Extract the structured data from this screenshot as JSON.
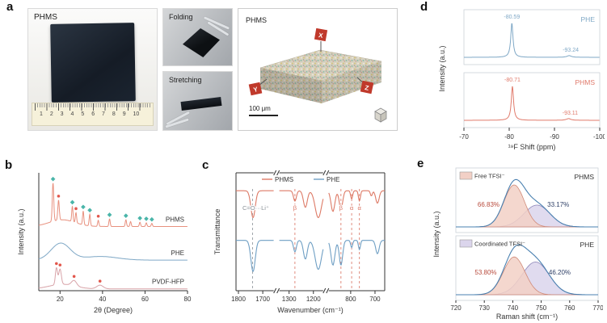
{
  "figure": {
    "panel_labels": {
      "a": "a",
      "b": "b",
      "c": "c",
      "d": "d",
      "e": "e"
    }
  },
  "panel_a": {
    "membrane_photo": {
      "label": "PHMS",
      "ruler_numbers": "1 2 3 4 5 6 7 8 9 10"
    },
    "folding_photo": {
      "label": "Folding"
    },
    "stretching_photo": {
      "label": "Stretching"
    },
    "render_3d": {
      "label": "PHMS",
      "scale_bar": "100 μm",
      "axis_flags": [
        "X",
        "Y",
        "Z"
      ]
    }
  },
  "chart_data": [
    {
      "id": "xrd",
      "type": "line",
      "title": "",
      "xlabel": "2θ (Degree)",
      "ylabel": "Intensity (a.u.)",
      "xlim": [
        10,
        80
      ],
      "xticks": [
        20,
        40,
        60,
        80
      ],
      "marker_colors": {
        "d": "#4ab5a9",
        "c": "#e2574c"
      },
      "series": [
        {
          "name": "PHMS",
          "color": "#e8907e",
          "offset": 2.1,
          "humps": [
            {
              "c": 21,
              "a": 0.22,
              "w": 6
            }
          ],
          "peaks": [
            {
              "c": 16.7,
              "a": 1.25,
              "w": 0.35
            },
            {
              "c": 19.3,
              "a": 0.65,
              "w": 0.35
            },
            {
              "c": 25.8,
              "a": 0.5,
              "w": 0.3
            },
            {
              "c": 27.5,
              "a": 0.33,
              "w": 0.3
            },
            {
              "c": 30.9,
              "a": 0.45,
              "w": 0.3
            },
            {
              "c": 34.0,
              "a": 0.38,
              "w": 0.3
            },
            {
              "c": 38.0,
              "a": 0.2,
              "w": 0.3
            },
            {
              "c": 43.3,
              "a": 0.25,
              "w": 0.3
            },
            {
              "c": 51.0,
              "a": 0.22,
              "w": 0.3
            },
            {
              "c": 53.2,
              "a": 0.16,
              "w": 0.3
            },
            {
              "c": 57.6,
              "a": 0.14,
              "w": 0.3
            },
            {
              "c": 60.6,
              "a": 0.12,
              "w": 0.3
            },
            {
              "c": 63.2,
              "a": 0.1,
              "w": 0.3
            }
          ],
          "markers": [
            {
              "x": 16.7,
              "sym": "d"
            },
            {
              "x": 19.3,
              "sym": "c"
            },
            {
              "x": 25.8,
              "sym": "d"
            },
            {
              "x": 27.5,
              "sym": "c"
            },
            {
              "x": 30.9,
              "sym": "d"
            },
            {
              "x": 34.0,
              "sym": "d"
            },
            {
              "x": 38.0,
              "sym": "c"
            },
            {
              "x": 43.3,
              "sym": "d"
            },
            {
              "x": 51.0,
              "sym": "d"
            },
            {
              "x": 57.6,
              "sym": "d"
            },
            {
              "x": 60.6,
              "sym": "d"
            },
            {
              "x": 63.2,
              "sym": "d"
            }
          ]
        },
        {
          "name": "PHE",
          "color": "#7fa8c6",
          "offset": 1.0,
          "humps": [
            {
              "c": 20.3,
              "a": 0.55,
              "w": 4.5
            },
            {
              "c": 39,
              "a": 0.12,
              "w": 8
            }
          ],
          "peaks": [],
          "markers": []
        },
        {
          "name": "PVDF-HFP",
          "color": "#d8a3a8",
          "offset": 0.06,
          "humps": [
            {
              "c": 21,
              "a": 0.15,
              "w": 6
            }
          ],
          "peaks": [
            {
              "c": 18.3,
              "a": 0.55,
              "w": 0.5
            },
            {
              "c": 20.0,
              "a": 0.5,
              "w": 0.6
            },
            {
              "c": 26.6,
              "a": 0.18,
              "w": 1.2
            },
            {
              "c": 38.8,
              "a": 0.12,
              "w": 1.5
            }
          ],
          "markers": [
            {
              "x": 18.3,
              "sym": "c"
            },
            {
              "x": 20.0,
              "sym": "c"
            },
            {
              "x": 26.6,
              "sym": "c"
            },
            {
              "x": 38.8,
              "sym": "c"
            }
          ]
        }
      ]
    },
    {
      "id": "ftir",
      "type": "line",
      "title": "",
      "xlabel": "Wavenumber (cm⁻¹)",
      "ylabel": "Transmittance",
      "segments": [
        {
          "xmin": 1810,
          "xmax": 1655,
          "ticks": [
            1800,
            1700
          ]
        },
        {
          "xmin": 1340,
          "xmax": 1160,
          "ticks": [
            1300,
            1200
          ]
        },
        {
          "xmin": 890,
          "xmax": 660,
          "ticks": [
            800,
            700
          ]
        }
      ],
      "annotations": [
        {
          "x": 1742,
          "label": "C=O···Li⁺",
          "color": "#8a9097",
          "dx": 4
        },
        {
          "x": 1276,
          "label": "β",
          "color": "#d9705f",
          "dx": 0
        },
        {
          "x": 840,
          "label": "β",
          "color": "#d9705f",
          "dx": 0
        },
        {
          "x": 796,
          "label": "α",
          "color": "#d9705f",
          "dx": 0
        },
        {
          "x": 764,
          "label": "α",
          "color": "#d9705f",
          "dx": 0
        }
      ],
      "series": [
        {
          "name": "PHMS",
          "color": "#dd7a66",
          "base": 0.92,
          "dips": [
            {
              "c": 1740,
              "a": 0.26,
              "w": 9
            },
            {
              "c": 1276,
              "a": 0.1,
              "w": 6
            },
            {
              "c": 1233,
              "a": 0.16,
              "w": 8
            },
            {
              "c": 1180,
              "a": 0.26,
              "w": 13
            },
            {
              "c": 873,
              "a": 0.2,
              "w": 8
            },
            {
              "c": 840,
              "a": 0.18,
              "w": 7
            },
            {
              "c": 796,
              "a": 0.08,
              "w": 4
            },
            {
              "c": 764,
              "a": 0.1,
              "w": 4
            },
            {
              "c": 715,
              "a": 0.05,
              "w": 4
            },
            {
              "c": 690,
              "a": 0.12,
              "w": 7
            }
          ]
        },
        {
          "name": "PHE",
          "color": "#6f9fc4",
          "base": 0.44,
          "dips": [
            {
              "c": 1740,
              "a": 0.3,
              "w": 9
            },
            {
              "c": 1276,
              "a": 0.11,
              "w": 6
            },
            {
              "c": 1233,
              "a": 0.18,
              "w": 8
            },
            {
              "c": 1180,
              "a": 0.28,
              "w": 13
            },
            {
              "c": 873,
              "a": 0.24,
              "w": 8
            },
            {
              "c": 840,
              "a": 0.24,
              "w": 7
            },
            {
              "c": 796,
              "a": 0.07,
              "w": 4
            },
            {
              "c": 764,
              "a": 0.09,
              "w": 4
            },
            {
              "c": 690,
              "a": 0.13,
              "w": 7
            }
          ]
        }
      ]
    },
    {
      "id": "nmr",
      "type": "line",
      "title": "",
      "xlabel": "¹⁹F Shift (ppm)",
      "ylabel": "Intensity (a.u.)",
      "xlim": [
        -70,
        -100
      ],
      "xticks": [
        -70,
        -80,
        -90,
        -100
      ],
      "subplots": [
        {
          "name": "PHE",
          "color": "#7fa8c6",
          "peaks": [
            {
              "c": -80.59,
              "a": 1.0,
              "w": 0.3,
              "label": "-80.59"
            },
            {
              "c": -93.24,
              "a": 0.05,
              "w": 0.6,
              "label": "-93.24"
            }
          ]
        },
        {
          "name": "PHMS",
          "color": "#e07a6b",
          "peaks": [
            {
              "c": -80.71,
              "a": 1.0,
              "w": 0.3,
              "label": "-80.71"
            },
            {
              "c": -93.11,
              "a": 0.05,
              "w": 0.6,
              "label": "-93.11"
            }
          ]
        }
      ]
    },
    {
      "id": "raman",
      "type": "area",
      "title": "",
      "xlabel": "Raman shift (cm⁻¹)",
      "ylabel": "Intensity (a.u.)",
      "xlim": [
        720,
        770
      ],
      "xticks": [
        720,
        730,
        740,
        750,
        760,
        770
      ],
      "envelope_color": "#4a80b0",
      "subplots": [
        {
          "name": "PHMS",
          "legend": "Free TFSI⁻",
          "legend_fill": "#f2d0c6",
          "components": [
            {
              "name": "Free TFSI⁻",
              "pct": "66.83%",
              "pct_x": 731.5,
              "pct_color": "#b84a3c",
              "c": 740.5,
              "a": 1.0,
              "w": 3.6,
              "fill": "#f2d0c6",
              "stroke": "#d08a78"
            },
            {
              "name": "Coordinated TFSI⁻",
              "pct": "33.17%",
              "pct_x": 756,
              "pct_color": "#2e3f66",
              "c": 748.5,
              "a": 0.52,
              "w": 4.6,
              "fill": "#dbd5ec",
              "stroke": "#8c85b8"
            }
          ]
        },
        {
          "name": "PHE",
          "legend": "Coordinated TFSI⁻",
          "legend_fill": "#dbd5ec",
          "components": [
            {
              "name": "Free TFSI⁻",
              "pct": "53.80%",
              "pct_x": 730.5,
              "pct_color": "#b84a3c",
              "c": 740.5,
              "a": 0.9,
              "w": 3.8,
              "fill": "#f2d0c6",
              "stroke": "#d08a78"
            },
            {
              "name": "Coordinated TFSI⁻",
              "pct": "46.20%",
              "pct_x": 756.5,
              "pct_color": "#2e3f66",
              "c": 748,
              "a": 0.78,
              "w": 4.8,
              "fill": "#dbd5ec",
              "stroke": "#8c85b8"
            }
          ]
        }
      ]
    }
  ]
}
